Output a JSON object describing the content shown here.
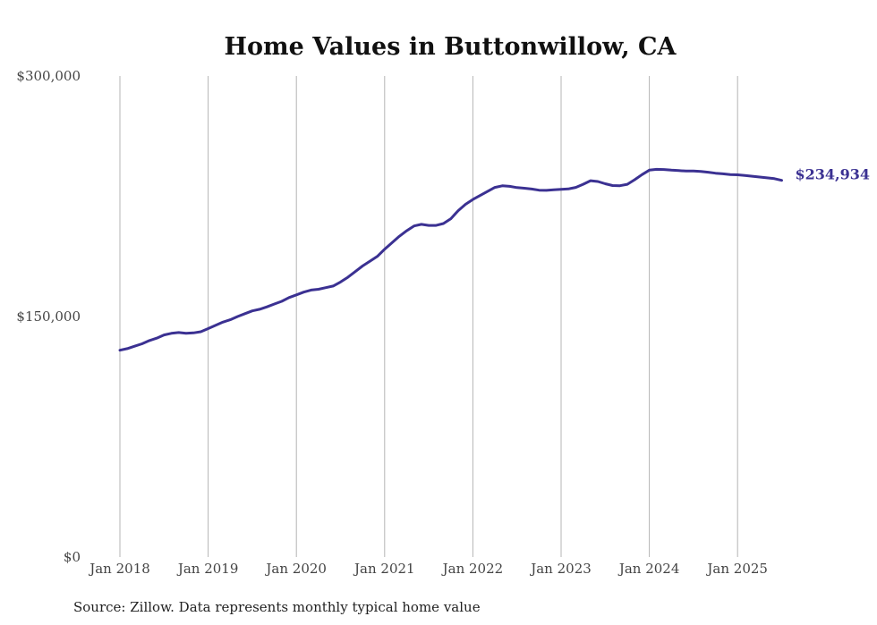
{
  "chart_data": {
    "type": "line",
    "title": "Home Values in Buttonwillow, CA",
    "source": "Source: Zillow. Data represents monthly typical home value",
    "ylim": [
      0,
      300000
    ],
    "y_ticks": [
      0,
      150000,
      300000
    ],
    "y_tick_labels": [
      "$0",
      "$150,000",
      "$300,000"
    ],
    "x_range": [
      "2018-01",
      "2025-07"
    ],
    "x_ticks": [
      "2018-01",
      "2019-01",
      "2020-01",
      "2021-01",
      "2022-01",
      "2023-01",
      "2024-01",
      "2025-01"
    ],
    "x_tick_labels": [
      "Jan 2018",
      "Jan 2019",
      "Jan 2020",
      "Jan 2021",
      "Jan 2022",
      "Jan 2023",
      "Jan 2024",
      "Jan 2025"
    ],
    "grid": "vertical",
    "line_color": "#3b3192",
    "end_label": "$234,934",
    "series": [
      {
        "x": [
          "2018-01",
          "2018-02",
          "2018-03",
          "2018-04",
          "2018-05",
          "2018-06",
          "2018-07",
          "2018-08",
          "2018-09",
          "2018-10",
          "2018-11",
          "2018-12",
          "2019-01",
          "2019-02",
          "2019-03",
          "2019-04",
          "2019-05",
          "2019-06",
          "2019-07",
          "2019-08",
          "2019-09",
          "2019-10",
          "2019-11",
          "2019-12",
          "2020-01",
          "2020-02",
          "2020-03",
          "2020-04",
          "2020-05",
          "2020-06",
          "2020-07",
          "2020-08",
          "2020-09",
          "2020-10",
          "2020-11",
          "2020-12",
          "2021-01",
          "2021-02",
          "2021-03",
          "2021-04",
          "2021-05",
          "2021-06",
          "2021-07",
          "2021-08",
          "2021-09",
          "2021-10",
          "2021-11",
          "2021-12",
          "2022-01",
          "2022-02",
          "2022-03",
          "2022-04",
          "2022-05",
          "2022-06",
          "2022-07",
          "2022-08",
          "2022-09",
          "2022-10",
          "2022-11",
          "2022-12",
          "2023-01",
          "2023-02",
          "2023-03",
          "2023-04",
          "2023-05",
          "2023-06",
          "2023-07",
          "2023-08",
          "2023-09",
          "2023-10",
          "2023-11",
          "2023-12",
          "2024-01",
          "2024-02",
          "2024-03",
          "2024-04",
          "2024-05",
          "2024-06",
          "2024-07",
          "2024-08",
          "2024-09",
          "2024-10",
          "2024-11",
          "2024-12",
          "2025-01",
          "2025-02",
          "2025-03",
          "2025-04",
          "2025-05",
          "2025-06",
          "2025-07"
        ],
        "values": [
          129000,
          130000,
          131500,
          133000,
          135000,
          136500,
          138500,
          139500,
          140000,
          139500,
          139800,
          140500,
          142500,
          144500,
          146500,
          148000,
          150000,
          151800,
          153500,
          154500,
          156000,
          157800,
          159500,
          161800,
          163500,
          165200,
          166500,
          167000,
          168000,
          169000,
          171500,
          174500,
          178000,
          181500,
          184500,
          187500,
          192000,
          196000,
          200000,
          203500,
          206500,
          207500,
          206800,
          206800,
          208000,
          211000,
          216000,
          220000,
          223000,
          225500,
          228000,
          230500,
          231500,
          231200,
          230400,
          230000,
          229500,
          228800,
          228700,
          229000,
          229300,
          229600,
          230500,
          232500,
          234700,
          234200,
          232800,
          231700,
          231600,
          232500,
          235300,
          238500,
          241300,
          241800,
          241700,
          241300,
          241000,
          240700,
          240700,
          240500,
          240000,
          239400,
          239000,
          238500,
          238400,
          238000,
          237500,
          237000,
          236500,
          236000,
          234934
        ]
      }
    ]
  }
}
